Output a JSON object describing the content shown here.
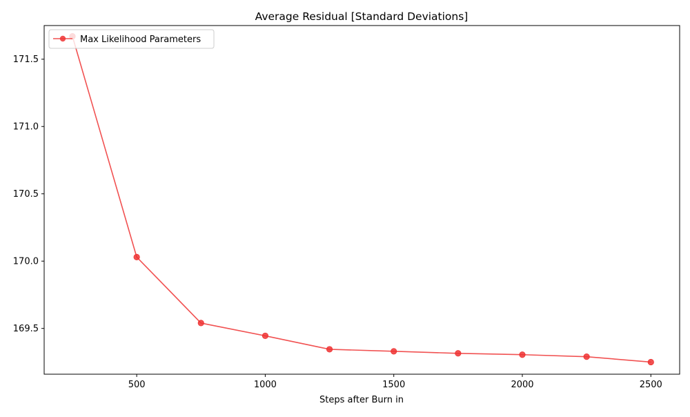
{
  "chart_data": {
    "type": "line",
    "title": "Average Residual [Standard Deviations]",
    "xlabel": "Steps after Burn in",
    "ylabel": "",
    "xlim": [
      140,
      2612
    ],
    "ylim": [
      169.16,
      171.75
    ],
    "xticks": [
      500,
      1000,
      1500,
      2000,
      2500
    ],
    "xtick_labels": [
      "500",
      "1000",
      "1500",
      "2000",
      "2500"
    ],
    "yticks": [
      169.5,
      170.0,
      170.5,
      171.0,
      171.5
    ],
    "ytick_labels": [
      "169.5",
      "170.0",
      "170.5",
      "171.0",
      "171.5"
    ],
    "grid": false,
    "legend_position": "upper-left",
    "series": [
      {
        "name": "Max Likelihood Parameters",
        "color": "#ee3333",
        "marker": "circle",
        "x": [
          250,
          500,
          750,
          1000,
          1250,
          1500,
          1750,
          2000,
          2250,
          2500
        ],
        "y": [
          171.67,
          170.03,
          169.54,
          169.445,
          169.345,
          169.33,
          169.315,
          169.305,
          169.29,
          169.25
        ]
      }
    ]
  }
}
